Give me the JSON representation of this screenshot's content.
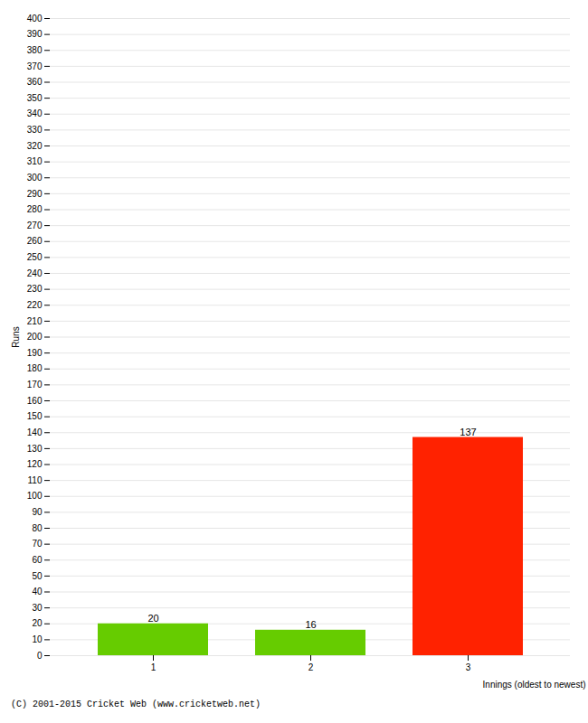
{
  "chart_data": {
    "type": "bar",
    "categories": [
      "1",
      "2",
      "3"
    ],
    "values": [
      20,
      16,
      137
    ],
    "colors": [
      "#66cc00",
      "#66cc00",
      "#ff2200"
    ],
    "xlabel": "Innings (oldest to newest)",
    "ylabel": "Runs",
    "ylim": [
      0,
      400
    ],
    "yticks": [
      0,
      10,
      20,
      30,
      40,
      50,
      60,
      70,
      80,
      90,
      100,
      110,
      120,
      130,
      140,
      150,
      160,
      170,
      180,
      190,
      200,
      210,
      220,
      230,
      240,
      250,
      260,
      270,
      280,
      290,
      300,
      310,
      320,
      330,
      340,
      350,
      360,
      370,
      380,
      390,
      400
    ],
    "grid": true,
    "data_labels": true,
    "footer": "(C) 2001-2015 Cricket Web (www.cricketweb.net)"
  }
}
